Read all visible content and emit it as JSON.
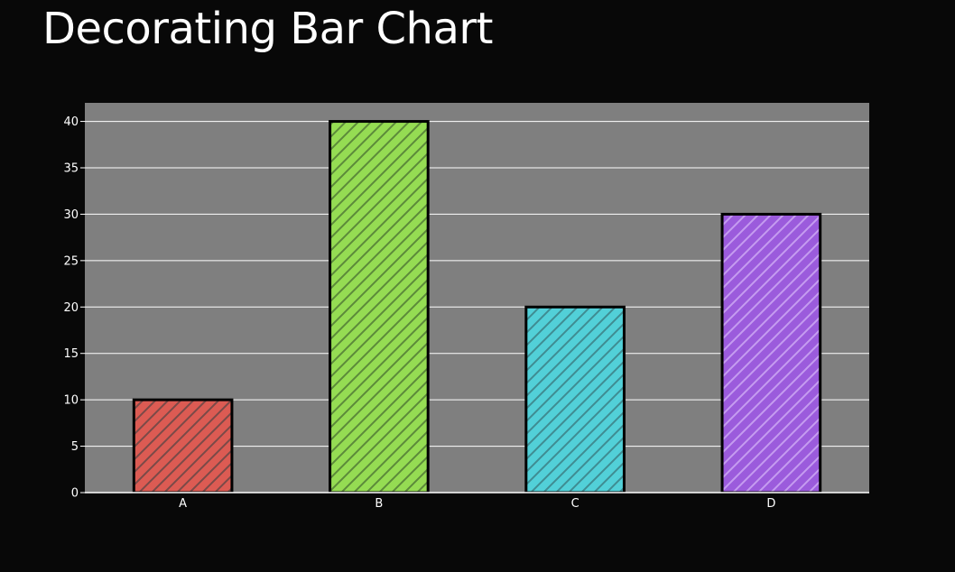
{
  "chart_data": {
    "type": "bar",
    "title": "Decorating Bar Chart",
    "categories": [
      "A",
      "B",
      "C",
      "D"
    ],
    "values": [
      10,
      40,
      20,
      30
    ],
    "colors": [
      "#dc5b53",
      "#95dc53",
      "#52d0d8",
      "#9b5bdc"
    ],
    "hatch_colors": [
      "#7a4a48",
      "#5c8a3a",
      "#3f8c92",
      "#c59cf0"
    ],
    "pattern": "diagonal-hatch",
    "bar_border_color": "#000000",
    "plot_background": "#7f7f7f",
    "page_background": "#080808",
    "grid": true,
    "ylim": [
      0,
      42
    ],
    "yticks": [
      "0",
      "5",
      "10",
      "15",
      "20",
      "25",
      "30",
      "35",
      "40"
    ],
    "xlabel": "",
    "ylabel": ""
  }
}
